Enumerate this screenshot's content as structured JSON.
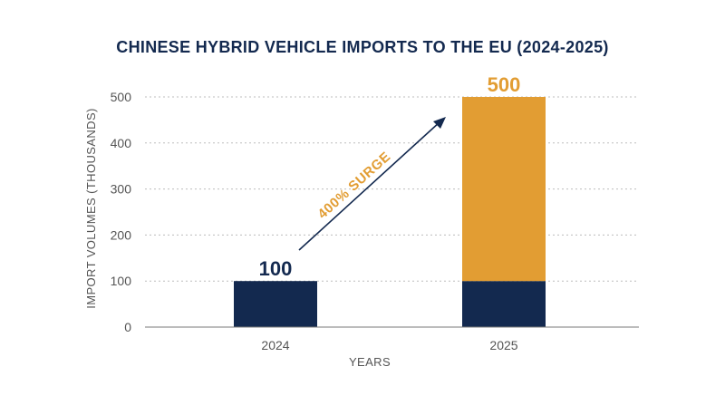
{
  "chart_data": {
    "type": "bar",
    "title": "CHINESE HYBRID VEHICLE IMPORTS TO THE EU (2024-2025)",
    "xlabel": "YEARS",
    "ylabel": "IMPORT VOLUMES (THOUSANDS)",
    "categories": [
      "2024",
      "2025"
    ],
    "series": [
      {
        "values": [
          100,
          100
        ],
        "color": "#13294f"
      },
      {
        "values": [
          0,
          400
        ],
        "color": "#e29d33"
      }
    ],
    "totals": [
      100,
      500
    ],
    "data_labels": [
      "100",
      "500"
    ],
    "data_label_colors": [
      "#13294f",
      "#e29d33"
    ],
    "ylim": [
      0,
      500
    ],
    "yticks": [
      0,
      100,
      200,
      300,
      400,
      500
    ],
    "grid": true,
    "annotation": {
      "text": "400% SURGE",
      "color": "#e29d33",
      "arrow_color": "#13294f"
    }
  }
}
